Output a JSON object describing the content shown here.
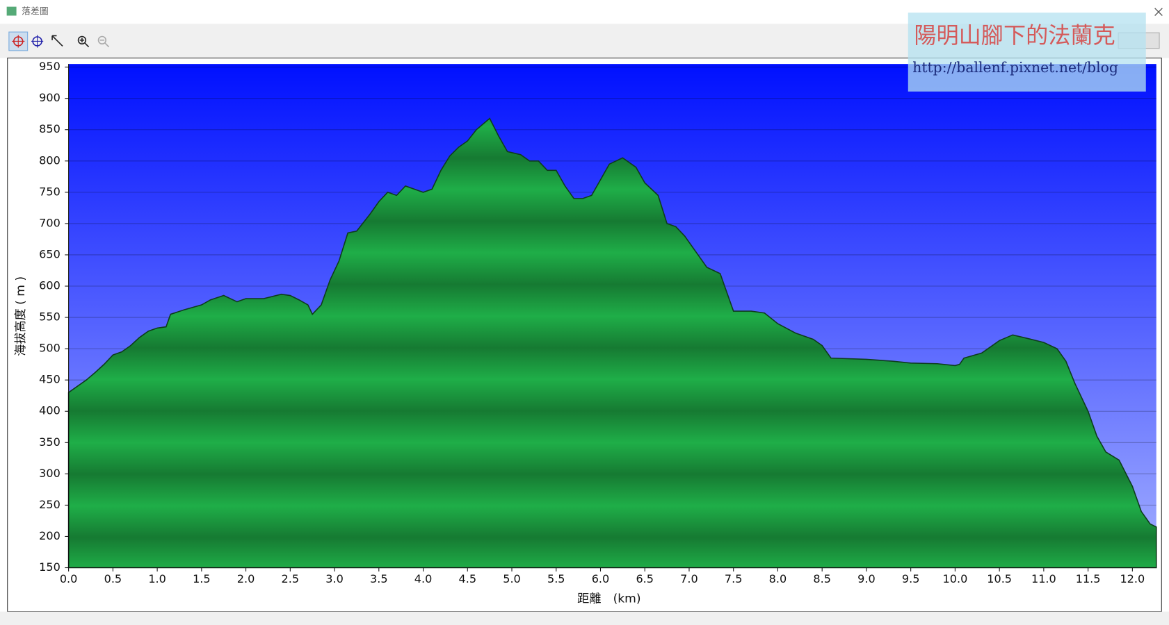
{
  "window": {
    "title": "落差圖"
  },
  "watermark": {
    "title": "陽明山腳下的法蘭克",
    "url": "http://ballenf.pixnet.net/blog"
  },
  "chart_data": {
    "type": "area",
    "x_label": "距離　(km)",
    "y_label": "海拔高度 ( m )",
    "xlim": [
      0,
      12.27
    ],
    "ylim": [
      150,
      955
    ],
    "xticks": [
      {
        "value": 0,
        "label": "0.0"
      },
      0.5,
      {
        "value": 1,
        "label": "1.0"
      },
      1.5,
      {
        "value": 2,
        "label": "2.0"
      },
      2.5,
      {
        "value": 3,
        "label": "3.0"
      },
      3.5,
      {
        "value": 4,
        "label": "4.0"
      },
      4.5,
      {
        "value": 5,
        "label": "5.0"
      },
      5.5,
      {
        "value": 6,
        "label": "6.0"
      },
      6.5,
      {
        "value": 7,
        "label": "7.0"
      },
      7.5,
      {
        "value": 8,
        "label": "8.0"
      },
      8.5,
      {
        "value": 9,
        "label": "9.0"
      },
      9.5,
      {
        "value": 10,
        "label": "10.0"
      },
      10.5,
      {
        "value": 11,
        "label": "11.0"
      },
      11.5,
      {
        "value": 12,
        "label": "12.0"
      }
    ],
    "yticks": [
      150,
      200,
      250,
      300,
      350,
      400,
      450,
      500,
      550,
      600,
      650,
      700,
      750,
      800,
      850,
      900,
      950
    ],
    "grid": true,
    "color": "#1fae48",
    "x": [
      0,
      0.1,
      0.2,
      0.3,
      0.4,
      0.5,
      0.6,
      0.7,
      0.8,
      0.9,
      1.0,
      1.1,
      1.15,
      1.3,
      1.5,
      1.6,
      1.75,
      1.9,
      2.0,
      2.2,
      2.4,
      2.5,
      2.6,
      2.7,
      2.75,
      2.85,
      2.95,
      3.05,
      3.15,
      3.25,
      3.4,
      3.5,
      3.6,
      3.7,
      3.8,
      3.9,
      4.0,
      4.1,
      4.2,
      4.3,
      4.4,
      4.5,
      4.6,
      4.75,
      4.85,
      4.95,
      5.1,
      5.2,
      5.3,
      5.4,
      5.5,
      5.6,
      5.7,
      5.8,
      5.9,
      6.0,
      6.1,
      6.25,
      6.4,
      6.5,
      6.65,
      6.75,
      6.85,
      6.95,
      7.1,
      7.2,
      7.35,
      7.45,
      7.5,
      7.7,
      7.85,
      8.0,
      8.2,
      8.4,
      8.5,
      8.6,
      9.0,
      9.3,
      9.5,
      9.8,
      10.0,
      10.05,
      10.1,
      10.3,
      10.5,
      10.65,
      10.8,
      11.0,
      11.15,
      11.25,
      11.35,
      11.5,
      11.6,
      11.7,
      11.85,
      12.0,
      12.1,
      12.2,
      12.27
    ],
    "values": [
      430,
      440,
      450,
      462,
      475,
      490,
      495,
      505,
      518,
      528,
      533,
      535,
      555,
      562,
      570,
      578,
      585,
      575,
      580,
      580,
      587,
      585,
      578,
      570,
      555,
      570,
      610,
      640,
      685,
      688,
      715,
      735,
      750,
      745,
      760,
      755,
      750,
      755,
      785,
      808,
      822,
      832,
      850,
      868,
      840,
      815,
      810,
      800,
      800,
      785,
      785,
      760,
      740,
      740,
      745,
      770,
      795,
      805,
      790,
      765,
      745,
      700,
      695,
      680,
      650,
      630,
      620,
      580,
      560,
      560,
      557,
      540,
      525,
      515,
      505,
      485,
      483,
      480,
      477,
      476,
      473,
      475,
      485,
      493,
      513,
      522,
      517,
      510,
      500,
      480,
      445,
      400,
      360,
      335,
      322,
      280,
      240,
      220,
      215
    ]
  }
}
